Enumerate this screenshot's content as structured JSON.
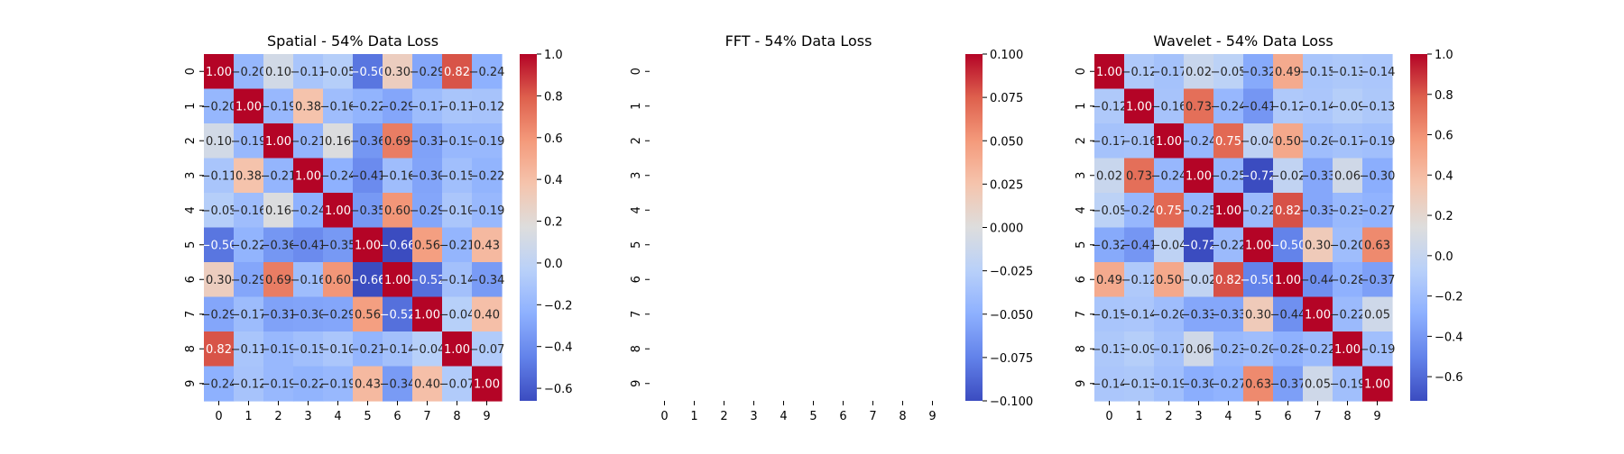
{
  "chart_data": [
    {
      "type": "heatmap",
      "title": "Spatial - 54% Data Loss",
      "x_ticks": [
        "0",
        "1",
        "2",
        "3",
        "4",
        "5",
        "6",
        "7",
        "8",
        "9"
      ],
      "y_ticks": [
        "0",
        "1",
        "2",
        "3",
        "4",
        "5",
        "6",
        "7",
        "8",
        "9"
      ],
      "colormap": "coolwarm",
      "vmin": -0.66,
      "vmax": 1.0,
      "colorbar_ticks": [
        "−0.6",
        "−0.4",
        "−0.2",
        "0.0",
        "0.2",
        "0.4",
        "0.6",
        "0.8",
        "1.0"
      ],
      "colorbar_tick_values": [
        -0.6,
        -0.4,
        -0.2,
        0.0,
        0.2,
        0.4,
        0.6,
        0.8,
        1.0
      ],
      "values": [
        [
          1.0,
          -0.2,
          0.1,
          -0.11,
          -0.05,
          -0.5,
          0.3,
          -0.29,
          0.82,
          -0.24
        ],
        [
          -0.2,
          1.0,
          -0.19,
          0.38,
          -0.16,
          -0.22,
          -0.29,
          -0.17,
          -0.11,
          -0.12
        ],
        [
          0.1,
          -0.19,
          1.0,
          -0.21,
          0.16,
          -0.36,
          0.69,
          -0.31,
          -0.19,
          -0.19
        ],
        [
          -0.11,
          0.38,
          -0.21,
          1.0,
          -0.24,
          -0.41,
          -0.16,
          -0.3,
          -0.15,
          -0.22
        ],
        [
          -0.05,
          -0.16,
          0.16,
          -0.24,
          1.0,
          -0.35,
          0.6,
          -0.29,
          -0.1,
          -0.19
        ],
        [
          -0.5,
          -0.22,
          -0.36,
          -0.41,
          -0.35,
          1.0,
          -0.66,
          0.56,
          -0.21,
          0.43
        ],
        [
          0.3,
          -0.29,
          0.69,
          -0.16,
          0.6,
          -0.66,
          1.0,
          -0.52,
          -0.14,
          -0.34
        ],
        [
          -0.29,
          -0.17,
          -0.31,
          -0.3,
          -0.29,
          0.56,
          -0.52,
          1.0,
          -0.04,
          0.4
        ],
        [
          0.82,
          -0.11,
          -0.19,
          -0.15,
          -0.1,
          -0.21,
          -0.14,
          -0.04,
          1.0,
          -0.07
        ],
        [
          -0.24,
          -0.12,
          -0.19,
          -0.22,
          -0.19,
          0.43,
          -0.34,
          0.4,
          -0.07,
          1.0
        ]
      ]
    },
    {
      "type": "heatmap",
      "title": "FFT - 54% Data Loss",
      "x_ticks": [
        "0",
        "1",
        "2",
        "3",
        "4",
        "5",
        "6",
        "7",
        "8",
        "9"
      ],
      "y_ticks": [
        "0",
        "1",
        "2",
        "3",
        "4",
        "5",
        "6",
        "7",
        "8",
        "9"
      ],
      "colormap": "coolwarm",
      "vmin": -0.1,
      "vmax": 0.1,
      "colorbar_ticks": [
        "−0.100",
        "−0.075",
        "−0.050",
        "−0.025",
        "0.000",
        "0.025",
        "0.050",
        "0.075",
        "0.100"
      ],
      "colorbar_tick_values": [
        -0.1,
        -0.075,
        -0.05,
        -0.025,
        0.0,
        0.025,
        0.05,
        0.075,
        0.1
      ],
      "values": null
    },
    {
      "type": "heatmap",
      "title": "Wavelet - 54% Data Loss",
      "x_ticks": [
        "0",
        "1",
        "2",
        "3",
        "4",
        "5",
        "6",
        "7",
        "8",
        "9"
      ],
      "y_ticks": [
        "0",
        "1",
        "2",
        "3",
        "4",
        "5",
        "6",
        "7",
        "8",
        "9"
      ],
      "colormap": "coolwarm",
      "vmin": -0.72,
      "vmax": 1.0,
      "colorbar_ticks": [
        "−0.6",
        "−0.4",
        "−0.2",
        "0.0",
        "0.2",
        "0.4",
        "0.6",
        "0.8",
        "1.0"
      ],
      "colorbar_tick_values": [
        -0.6,
        -0.4,
        -0.2,
        0.0,
        0.2,
        0.4,
        0.6,
        0.8,
        1.0
      ],
      "values": [
        [
          1.0,
          -0.12,
          -0.17,
          0.02,
          -0.05,
          -0.32,
          0.49,
          -0.15,
          -0.13,
          -0.14
        ],
        [
          -0.12,
          1.0,
          -0.16,
          0.73,
          -0.24,
          -0.41,
          -0.12,
          -0.14,
          -0.09,
          -0.13
        ],
        [
          -0.17,
          -0.16,
          1.0,
          -0.24,
          0.75,
          -0.04,
          0.5,
          -0.2,
          -0.17,
          -0.19
        ],
        [
          0.02,
          0.73,
          -0.24,
          1.0,
          -0.25,
          -0.72,
          -0.02,
          -0.33,
          0.06,
          -0.3
        ],
        [
          -0.05,
          -0.24,
          0.75,
          -0.25,
          1.0,
          -0.22,
          0.82,
          -0.33,
          -0.23,
          -0.27
        ],
        [
          -0.32,
          -0.41,
          -0.04,
          -0.72,
          -0.22,
          1.0,
          -0.5,
          0.3,
          -0.2,
          0.63
        ],
        [
          0.49,
          -0.12,
          0.5,
          -0.02,
          0.82,
          -0.5,
          1.0,
          -0.44,
          -0.28,
          -0.37
        ],
        [
          -0.15,
          -0.14,
          -0.2,
          -0.33,
          -0.33,
          0.3,
          -0.44,
          1.0,
          -0.22,
          0.05
        ],
        [
          -0.13,
          -0.09,
          -0.17,
          0.06,
          -0.23,
          -0.2,
          -0.28,
          -0.22,
          1.0,
          -0.19
        ],
        [
          -0.14,
          -0.13,
          -0.19,
          -0.3,
          -0.27,
          0.63,
          -0.37,
          0.05,
          -0.19,
          1.0
        ]
      ]
    }
  ]
}
